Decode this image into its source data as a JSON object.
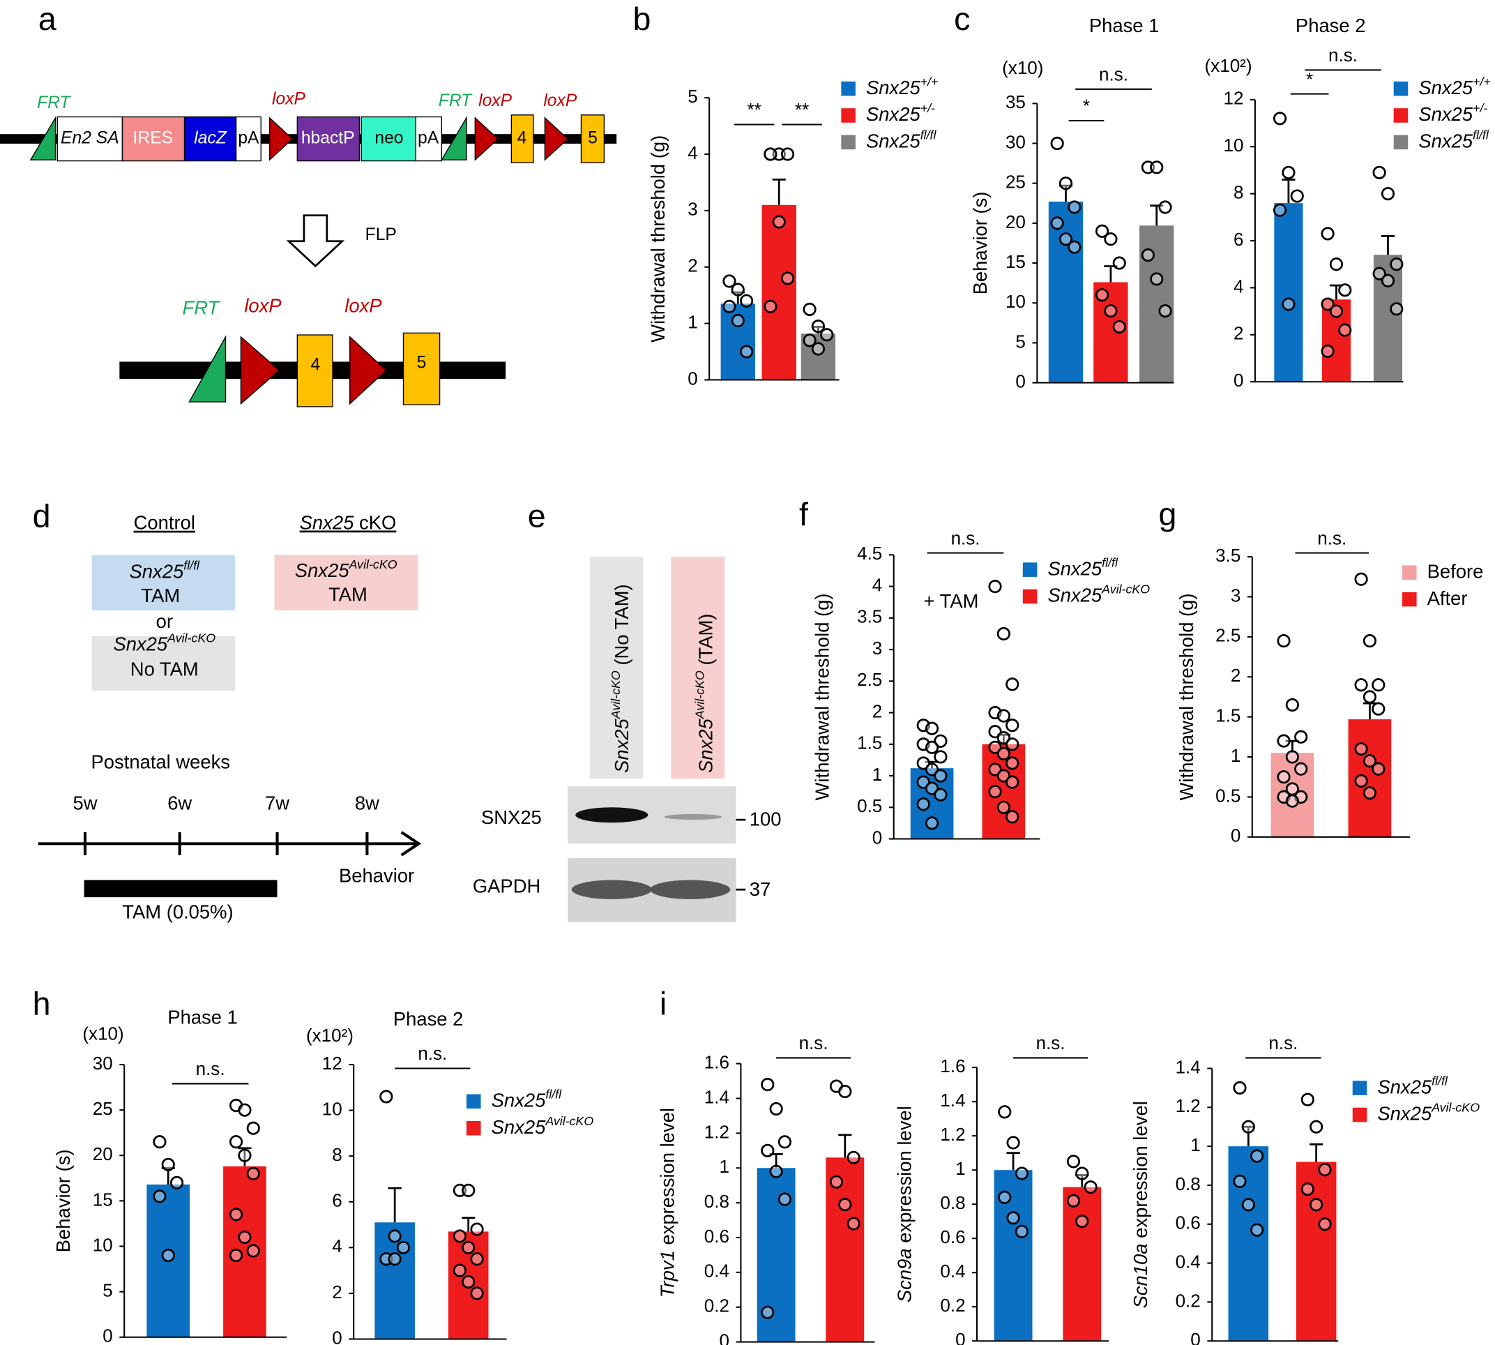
{
  "figure": {
    "panels": [
      "a",
      "b",
      "c",
      "d",
      "e",
      "f",
      "g",
      "h",
      "i"
    ],
    "a": {
      "elements": [
        "En2 SA",
        "IRES",
        "lacZ",
        "pA",
        "hbactP",
        "neo",
        "pA",
        "4",
        "5"
      ],
      "sites": [
        "FRT",
        "loxP",
        "FRT",
        "loxP",
        "loxP"
      ],
      "enzyme": "FLP",
      "product_sites": [
        "FRT",
        "loxP",
        "loxP"
      ],
      "product_exons": [
        "4",
        "5"
      ]
    },
    "d": {
      "control": "Control",
      "cko_gene": "Snx25",
      "cko_rest": " cKO",
      "boxes": [
        {
          "gene": "Snx25",
          "sup": "fl/fl",
          "treat": "TAM"
        },
        {
          "gene": "Snx25",
          "sup": "Avil-cKO",
          "treat": "No TAM"
        },
        {
          "gene": "Snx25",
          "sup": "Avil-cKO",
          "treat": "TAM"
        }
      ],
      "or": "or",
      "timeline": "Postnatal weeks",
      "weeks": [
        "5w",
        "6w",
        "7w",
        "8w"
      ],
      "behavior": "Behavior",
      "tam": "TAM (0.05%)"
    },
    "e": {
      "lanes": [
        {
          "gene": "Snx25",
          "sup": "Avil-cKO",
          "treat": " (No TAM)"
        },
        {
          "gene": "Snx25",
          "sup": "Avil-cKO",
          "treat": " (TAM)"
        }
      ],
      "bands": [
        "SNX25",
        "GAPDH"
      ],
      "sizes": [
        "100",
        "37"
      ]
    }
  },
  "chart_data": [
    {
      "type": "bar",
      "ylabel": "Withdrawal threshold (g)",
      "ylim": [
        0,
        5
      ],
      "yticks": [
        0,
        1,
        2,
        3,
        4,
        5
      ],
      "sig": [
        "**",
        "**"
      ],
      "legend": true,
      "series": [
        {
          "name": "Snx25",
          "sup": "+/+",
          "color": "#0b6fc2",
          "value": 1.35,
          "error": 0.2,
          "points": [
            1.75,
            1.6,
            1.4,
            1.3,
            1.05,
            0.5
          ]
        },
        {
          "name": "Snx25",
          "sup": "+/-",
          "color": "#ee1c1c",
          "value": 3.1,
          "error": 0.45,
          "points": [
            4,
            4,
            4,
            4,
            2.8,
            1.8,
            1.3
          ]
        },
        {
          "name": "Snx25",
          "sup": "fl/fl",
          "color": "#808080",
          "value": 0.82,
          "error": 0.12,
          "points": [
            1.25,
            0.95,
            0.8,
            0.7,
            0.55
          ]
        }
      ]
    },
    {
      "type": "bar",
      "title": "Phase 1",
      "unit": "(x10)",
      "ylabel": "Behavior (s)",
      "ylim": [
        0,
        35
      ],
      "yticks": [
        0,
        5,
        10,
        15,
        20,
        25,
        30,
        35
      ],
      "sig": [
        "*",
        "n.s."
      ],
      "series": [
        {
          "name": "Snx25",
          "sup": "+/+",
          "color": "#0b6fc2",
          "value": 22.7,
          "error": 2,
          "points": [
            30,
            25,
            22,
            20,
            18,
            17
          ]
        },
        {
          "name": "Snx25",
          "sup": "+/-",
          "color": "#ee1c1c",
          "value": 12.6,
          "error": 2,
          "points": [
            19,
            18,
            15,
            11,
            9,
            7
          ]
        },
        {
          "name": "Snx25",
          "sup": "fl/fl",
          "color": "#808080",
          "value": 19.7,
          "error": 2.5,
          "points": [
            27,
            27,
            22,
            16,
            13,
            9
          ]
        }
      ]
    },
    {
      "type": "bar",
      "title": "Phase 2",
      "unit": "(x10²)",
      "ylim": [
        0,
        12
      ],
      "yticks": [
        0,
        2,
        4,
        6,
        8,
        10,
        12
      ],
      "sig": [
        "*",
        "n.s."
      ],
      "legend": true,
      "series": [
        {
          "name": "Snx25",
          "sup": "+/+",
          "color": "#0b6fc2",
          "value": 7.6,
          "error": 1,
          "points": [
            11.2,
            8.9,
            7.9,
            7.3,
            3.3
          ]
        },
        {
          "name": "Snx25",
          "sup": "+/-",
          "color": "#ee1c1c",
          "value": 3.5,
          "error": 0.6,
          "points": [
            6.3,
            5,
            3.9,
            3.3,
            3,
            2.2,
            1.3
          ]
        },
        {
          "name": "Snx25",
          "sup": "fl/fl",
          "color": "#808080",
          "value": 5.4,
          "error": 0.8,
          "points": [
            8.9,
            8,
            5,
            4.6,
            4.3,
            3.1
          ]
        }
      ]
    },
    {
      "type": "bar",
      "ylabel": "Withdrawal threshold (g)",
      "annotation": "+ TAM",
      "ylim": [
        0,
        4.5
      ],
      "yticks": [
        0,
        0.5,
        1,
        1.5,
        2,
        2.5,
        3,
        3.5,
        4,
        4.5
      ],
      "sig": [
        "n.s."
      ],
      "legend": true,
      "series": [
        {
          "name": "Snx25",
          "sup": "fl/fl",
          "color": "#0b6fc2",
          "value": 1.12,
          "error": 0.1,
          "points": [
            1.8,
            1.75,
            1.55,
            1.5,
            1.45,
            1.3,
            1.2,
            1.1,
            1,
            0.9,
            0.8,
            0.7,
            0.55,
            0.25
          ]
        },
        {
          "name": "Snx25",
          "sup": "Avil-cKO",
          "color": "#ee1c1c",
          "value": 1.5,
          "error": 0.15,
          "points": [
            4,
            3.25,
            2.45,
            2,
            1.95,
            1.8,
            1.7,
            1.6,
            1.5,
            1.45,
            1.35,
            1.2,
            1.1,
            1,
            0.9,
            0.75,
            0.5,
            0.35
          ]
        }
      ]
    },
    {
      "type": "bar",
      "ylabel": "Withdrawal threshold (g)",
      "ylim": [
        0,
        3.5
      ],
      "yticks": [
        0,
        0.5,
        1,
        1.5,
        2,
        2.5,
        3,
        3.5
      ],
      "sig": [
        "n.s."
      ],
      "legend": true,
      "series": [
        {
          "name": "Before",
          "color": "#f4a0a0",
          "value": 1.05,
          "error": 0.15,
          "points": [
            2.45,
            1.65,
            1.25,
            1.2,
            1,
            0.85,
            0.75,
            0.6,
            0.5,
            0.5,
            0.45
          ]
        },
        {
          "name": "After",
          "color": "#ee1c1c",
          "value": 1.47,
          "error": 0.2,
          "points": [
            3.22,
            2.45,
            1.9,
            1.9,
            1.75,
            1.6,
            1.1,
            0.95,
            0.85,
            0.7,
            0.55
          ]
        }
      ]
    },
    {
      "type": "bar",
      "title": "Phase 1",
      "unit": "(x10)",
      "ylabel": "Behavior (s)",
      "ylim": [
        0,
        30
      ],
      "yticks": [
        0,
        5,
        10,
        15,
        20,
        25,
        30
      ],
      "sig": [
        "n.s."
      ],
      "series": [
        {
          "name": "Snx25",
          "sup": "fl/fl",
          "color": "#0b6fc2",
          "value": 16.8,
          "error": 1.8,
          "points": [
            21.5,
            19,
            17,
            15.5,
            9
          ]
        },
        {
          "name": "Snx25",
          "sup": "Avil-cKO",
          "color": "#ee1c1c",
          "value": 18.8,
          "error": 2,
          "points": [
            25.5,
            25,
            23,
            21.5,
            20,
            18,
            13.5,
            11,
            9.5,
            9
          ]
        }
      ]
    },
    {
      "type": "bar",
      "title": "Phase 2",
      "unit": "(x10²)",
      "ylim": [
        0,
        12
      ],
      "yticks": [
        0,
        2,
        4,
        6,
        8,
        10,
        12
      ],
      "sig": [
        "n.s."
      ],
      "legend": true,
      "series": [
        {
          "name": "Snx25",
          "sup": "fl/fl",
          "color": "#0b6fc2",
          "value": 5.1,
          "error": 1.5,
          "points": [
            10.6,
            4.5,
            4,
            3.5,
            3.5
          ]
        },
        {
          "name": "Snx25",
          "sup": "Avil-cKO",
          "color": "#ee1c1c",
          "value": 4.7,
          "error": 0.6,
          "points": [
            6.5,
            6.5,
            4.8,
            4.5,
            4,
            3.5,
            3,
            2.5,
            2
          ]
        }
      ]
    },
    {
      "type": "bar",
      "ylabel_gene": "Trpv1",
      "ylabel": " expression level",
      "ylim": [
        0,
        1.6
      ],
      "yticks": [
        0,
        0.2,
        0.4,
        0.6,
        0.8,
        1,
        1.2,
        1.4,
        1.6
      ],
      "sig": [
        "n.s."
      ],
      "series": [
        {
          "name": "Snx25",
          "sup": "fl/fl",
          "color": "#0b6fc2",
          "value": 1,
          "error": 0.08,
          "points": [
            1.48,
            1.34,
            1.15,
            1.1,
            0.98,
            0.82,
            0.17
          ]
        },
        {
          "name": "Snx25",
          "sup": "Avil-cKO",
          "color": "#ee1c1c",
          "value": 1.06,
          "error": 0.13,
          "points": [
            1.47,
            1.44,
            1.06,
            0.92,
            0.79,
            0.68
          ]
        }
      ]
    },
    {
      "type": "bar",
      "ylabel_gene": "Scn9a",
      "ylabel": " expression level",
      "ylim": [
        0,
        1.6
      ],
      "yticks": [
        0,
        0.2,
        0.4,
        0.6,
        0.8,
        1,
        1.2,
        1.4,
        1.6
      ],
      "sig": [
        "n.s."
      ],
      "series": [
        {
          "name": "Snx25",
          "sup": "fl/fl",
          "color": "#0b6fc2",
          "value": 1,
          "error": 0.1,
          "points": [
            1.34,
            1.16,
            0.98,
            0.84,
            0.72,
            0.64
          ]
        },
        {
          "name": "Snx25",
          "sup": "Avil-cKO",
          "color": "#ee1c1c",
          "value": 0.9,
          "error": 0.07,
          "points": [
            1.05,
            0.98,
            0.9,
            0.82,
            0.7
          ]
        }
      ]
    },
    {
      "type": "bar",
      "ylabel_gene": "Scn10a",
      "ylabel": " expression level",
      "ylim": [
        0,
        1.4
      ],
      "yticks": [
        0,
        0.2,
        0.4,
        0.6,
        0.8,
        1,
        1.2,
        1.4
      ],
      "sig": [
        "n.s."
      ],
      "legend": true,
      "series": [
        {
          "name": "Snx25",
          "sup": "fl/fl",
          "color": "#0b6fc2",
          "value": 1,
          "error": 0.1,
          "points": [
            1.3,
            1.1,
            0.95,
            0.82,
            0.7,
            0.57
          ]
        },
        {
          "name": "Snx25",
          "sup": "Avil-cKO",
          "color": "#ee1c1c",
          "value": 0.92,
          "error": 0.09,
          "points": [
            1.24,
            1.1,
            0.88,
            0.78,
            0.7,
            0.6
          ]
        }
      ]
    }
  ]
}
